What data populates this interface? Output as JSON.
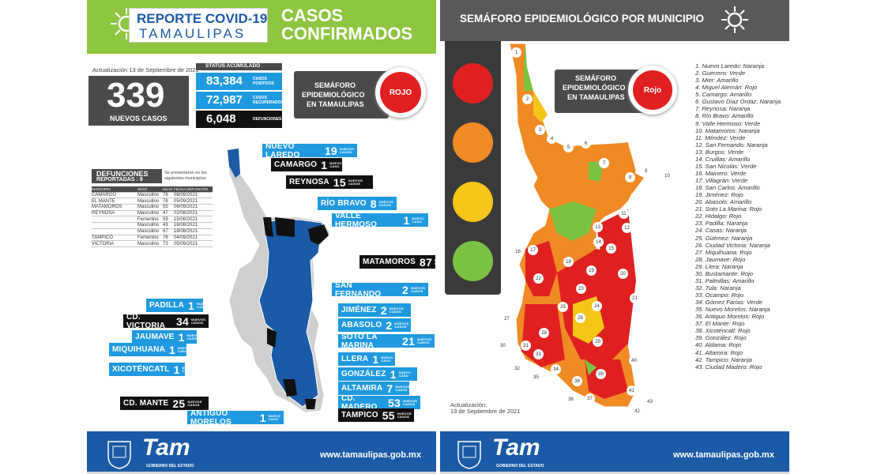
{
  "left": {
    "header": {
      "title_top": "REPORTE COVID-19",
      "title_bottom": "TAMAULIPAS",
      "casos": "CASOS",
      "confirmados": "CONFIRMADOS"
    },
    "update": "Actualización 13 de Septiembre de 2021",
    "new_cases": {
      "value": "339",
      "label": "NUEVOS CASOS"
    },
    "status": {
      "title": "STATUS ACUMULADO",
      "positive": {
        "value": "83,384",
        "label": "CASOS POSITIVOS"
      },
      "recovered": {
        "value": "72,987",
        "label": "CASOS RECUPERADOS"
      },
      "deaths": {
        "value": "6,048",
        "label": "DEFUNCIONES"
      }
    },
    "semaforo": {
      "label_lines": [
        "SEMÁFORO",
        "EPIDEMIOLÓGICO",
        "EN TAMAULIPAS"
      ],
      "value": "ROJO"
    },
    "deaths_table": {
      "title": "DEFUNCIONES",
      "subtitle": "REPORTADAS : 9",
      "note": "Se presentaron en los siguientes municipios:",
      "headers": [
        "MUNICIPIO",
        "SEXO",
        "EDAD",
        "FECHA DEFUNCIÓN"
      ],
      "rows": [
        [
          "CAMARGO",
          "Masculino",
          "76",
          "08/09/2021"
        ],
        [
          "EL MANTE",
          "Masculino",
          "78",
          "05/09/2021"
        ],
        [
          "MATAMOROS",
          "Masculino",
          "55",
          "06/09/2021"
        ],
        [
          "REYNOSA",
          "Masculino",
          "47",
          "02/08/2021"
        ],
        [
          "",
          "Femenino",
          "59",
          "15/08/2021"
        ],
        [
          "",
          "Masculino",
          "43",
          "16/08/2021"
        ],
        [
          "",
          "Masculino",
          "67",
          "18/08/2021"
        ],
        [
          "TAMPICO",
          "Femenino",
          "76",
          "04/09/2021"
        ],
        [
          "VICTORIA",
          "Masculino",
          "73",
          "05/09/2021"
        ]
      ]
    },
    "cities": [
      {
        "name": "NUEVO LAREDO",
        "num": "19",
        "sub": "NUEVOS CASOS",
        "style": "blue"
      },
      {
        "name": "CAMARGO",
        "num": "1",
        "sub": "NUEVO CASO",
        "style": "black"
      },
      {
        "name": "REYNOSA",
        "num": "15",
        "sub": "NUEVOS CASOS",
        "style": "black"
      },
      {
        "name": "RÍO BRAVO",
        "num": "8",
        "sub": "NUEVOS CASOS",
        "style": "blue"
      },
      {
        "name": "VALLE HERMOSO",
        "num": "1",
        "sub": "NUEVO CASO",
        "style": "blue"
      },
      {
        "name": "MATAMOROS",
        "num": "87",
        "sub": "NUEVOS CASOS",
        "style": "black"
      },
      {
        "name": "SAN FERNANDO",
        "num": "2",
        "sub": "NUEVOS CASOS",
        "style": "blue"
      },
      {
        "name": "JIMÉNEZ",
        "num": "2",
        "sub": "NUEVOS CASOS",
        "style": "blue"
      },
      {
        "name": "ABASOLO",
        "num": "2",
        "sub": "NUEVOS CASOS",
        "style": "blue"
      },
      {
        "name": "SOTO LA MARINA",
        "num": "21",
        "sub": "NUEVOS CASOS",
        "style": "blue"
      },
      {
        "name": "LLERA",
        "num": "1",
        "sub": "NUEVO CASO",
        "style": "blue"
      },
      {
        "name": "GONZÁLEZ",
        "num": "1",
        "sub": "NUEVO CASO",
        "style": "blue"
      },
      {
        "name": "ALTAMIRA",
        "num": "7",
        "sub": "NUEVOS CASOS",
        "style": "blue"
      },
      {
        "name": "CD. MADERO",
        "num": "53",
        "sub": "NUEVOS CASOS",
        "style": "blue"
      },
      {
        "name": "TAMPICO",
        "num": "55",
        "sub": "NUEVOS CASOS",
        "style": "black"
      },
      {
        "name": "ANTIGUO MORELOS",
        "num": "1",
        "sub": "NUEVO CASO",
        "style": "blue"
      },
      {
        "name": "CD. MANTE",
        "num": "25",
        "sub": "NUEVOS CASOS",
        "style": "black"
      },
      {
        "name": "XICOTÉNCATL",
        "num": "1",
        "sub": "NUEVO CASO",
        "style": "blue"
      },
      {
        "name": "MIQUIHUANA",
        "num": "1",
        "sub": "NUEVO CASO",
        "style": "blue"
      },
      {
        "name": "JAUMAVE",
        "num": "1",
        "sub": "NUEVO CASO",
        "style": "blue"
      },
      {
        "name": "CD. VICTORIA",
        "num": "34",
        "sub": "NUEVOS CASOS",
        "style": "black"
      },
      {
        "name": "PADILLA",
        "num": "1",
        "sub": "NUEVO CASO",
        "style": "blue"
      }
    ]
  },
  "right": {
    "header": "SEMÁFORO EPIDEMIOLÓGICO POR MUNICIPIO",
    "semaforo": {
      "label_lines": [
        "SEMÁFORO",
        "EPIDEMIOLÓGICO",
        "EN TAMAULIPAS"
      ],
      "value": "Rojo"
    },
    "update_lines": [
      "Actualización:",
      "13 de Septiembre de 2021"
    ],
    "municipios": [
      "1. Nuevo Laredo: Naranja",
      "2. Guerrero: Verde",
      "3. Mier: Amarillo",
      "4. Miguel Alemán: Rojo",
      "5. Camargo: Amarillo",
      "6. Gustavo Díaz Ordaz: Naranja",
      "7. Reynosa: Naranja",
      "8. Río Bravo: Amarillo",
      "9. Valle Hermoso: Verde",
      "10. Matamoros: Naranja",
      "11. Méndez: Verde",
      "12. San Fernando: Naranja",
      "13. Burgos: Verde",
      "14. Cruillas: Amarillo",
      "15. San Nicolás: Verde",
      "16. Mainero: Verde",
      "17. Villagrán: Verde",
      "18. San Carlos: Amarillo",
      "19. Jiménez: Rojo",
      "20. Abasolo: Amarillo",
      "21. Soto La Marina: Rojo",
      "22. Hidalgo: Rojo",
      "23. Padilla: Naranja",
      "24. Casas: Naranja",
      "25. Güémez: Naranja",
      "26. Ciudad Victoria: Naranja",
      "27. Miquihuana: Rojo",
      "28. Jaumave: Rojo",
      "29. Llera: Naranja",
      "30. Bustamante: Rojo",
      "31. Palmillas: Amarillo",
      "32. Tula: Naranja",
      "33. Ocampo: Rojo",
      "34. Gómez Farías: Verde",
      "35. Nuevo Morelos: Naranja",
      "36. Antiguo Morelos: Rojo",
      "37. El Mante: Rojo",
      "38. Xicoténcatl: Rojo",
      "39. González: Rojo",
      "40. Aldama: Rojo",
      "41. Altamira: Rojo",
      "42. Tampico: Naranja",
      "43. Ciudad Madero: Rojo"
    ],
    "map_numbers": [
      "1",
      "2",
      "3",
      "4",
      "5",
      "6",
      "7",
      "8",
      "9",
      "10",
      "11",
      "12",
      "13",
      "14",
      "15",
      "16",
      "17",
      "18",
      "19",
      "20",
      "21",
      "22",
      "23",
      "24",
      "25",
      "26",
      "27",
      "28",
      "29",
      "30",
      "31",
      "32",
      "33",
      "34",
      "35",
      "36",
      "37",
      "38",
      "39",
      "40",
      "41",
      "42",
      "43"
    ]
  },
  "footer": {
    "url": "www.tamaulipas.gob.mx",
    "brand": "Tam",
    "gov": "GOBIERNO DEL ESTADO"
  },
  "colors": {
    "green": "#8dc63f",
    "blue": "#1f9ae0",
    "dark": "#4a4a4a",
    "red": "#e02020",
    "orange": "#f08a24",
    "yellow": "#f5c518",
    "lightgreen": "#7cc242",
    "navy": "#1b5aa6"
  }
}
